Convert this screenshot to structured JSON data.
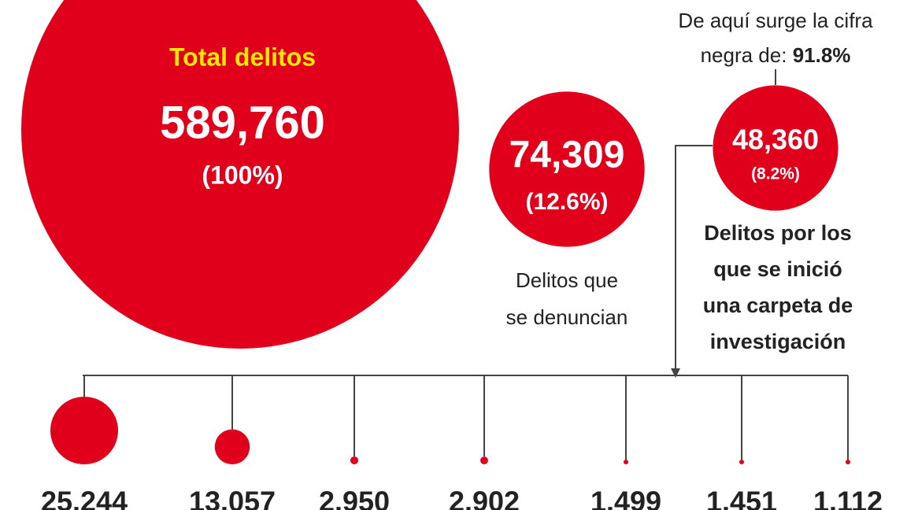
{
  "total": {
    "title": "Total delitos",
    "count": {
      "value": 589760,
      "label": "589,760"
    },
    "share": "(100%)"
  },
  "reported": {
    "count": {
      "value": 74309,
      "label": "74,309"
    },
    "share": "(12.6%)",
    "caption": [
      "Delitos que",
      "se denuncian"
    ]
  },
  "investigated": {
    "count": {
      "value": 48360,
      "label": "48,360"
    },
    "share": "(8.2%)",
    "caption": [
      "Delitos por los",
      "que se inició",
      "una carpeta de",
      "investigación"
    ]
  },
  "note": {
    "lines": [
      "De aquí surge la cifra",
      "negra de:"
    ],
    "figure": "91.8%"
  },
  "breakdown": [
    {
      "value": 25244,
      "label": "25.244"
    },
    {
      "value": 13057,
      "label": "13.057"
    },
    {
      "value": 2950,
      "label": "2.950"
    },
    {
      "value": 2902,
      "label": "2.902"
    },
    {
      "value": 1499,
      "label": "1.499"
    },
    {
      "value": 1451,
      "label": "1.451"
    },
    {
      "value": 1112,
      "label": "1.112"
    }
  ]
}
